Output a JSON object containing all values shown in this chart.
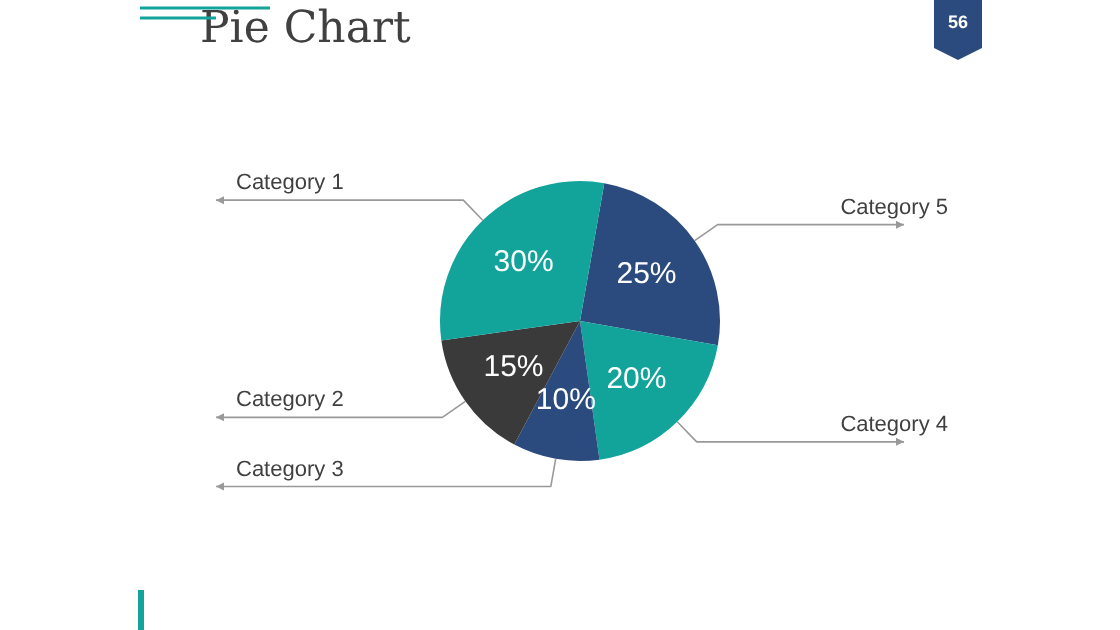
{
  "chart_data": {
    "type": "pie",
    "title": "Pie Chart",
    "categories": [
      "Category 5",
      "Category 4",
      "Category 3",
      "Category 2",
      "Category 1"
    ],
    "values": [
      25,
      20,
      10,
      15,
      30
    ],
    "value_labels": [
      "25%",
      "20%",
      "10%",
      "15%",
      "30%"
    ],
    "colors": [
      "#2b4a7e",
      "#12a39b",
      "#2b4a7e",
      "#3a3a3a",
      "#12a39b"
    ],
    "legend": false,
    "annotations": [
      "56"
    ]
  }
}
